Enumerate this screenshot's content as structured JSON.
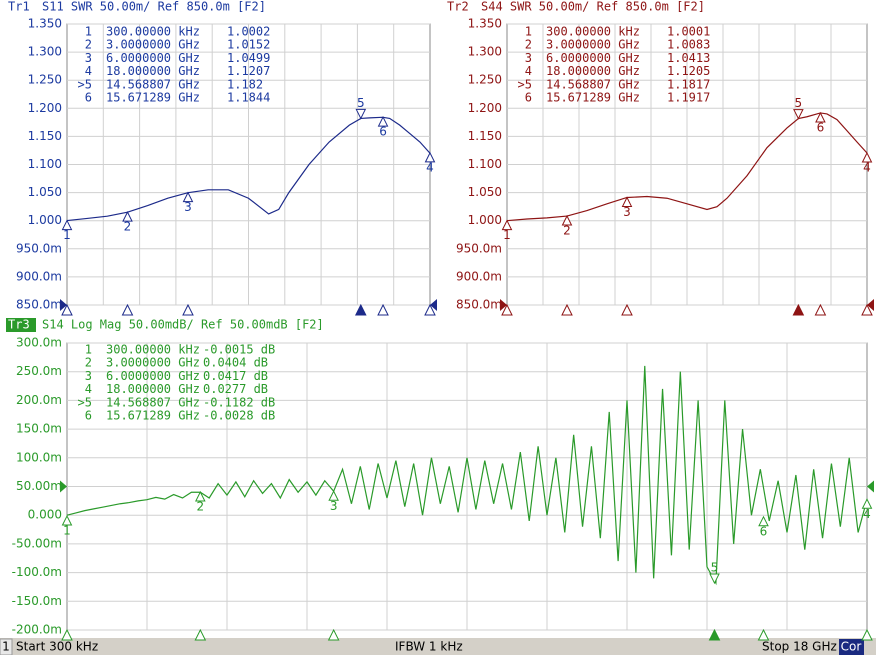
{
  "chart_data": [
    {
      "type": "line",
      "trace": "Tr1",
      "title": "S11  SWR 50.00m/  Ref 850.0m  [F2]",
      "color": "#1c2a8a",
      "text_color": "#1c3aa0",
      "active": false,
      "ref": 0.85,
      "xlim": [
        0.0003,
        18
      ],
      "ylim": [
        0.85,
        1.35
      ],
      "yticks": [
        {
          "value": 0.85,
          "label": "850.0m"
        },
        {
          "value": 0.9,
          "label": "900.0m"
        },
        {
          "value": 0.95,
          "label": "950.0m"
        },
        {
          "value": 1.0,
          "label": "1.000"
        },
        {
          "value": 1.05,
          "label": "1.050"
        },
        {
          "value": 1.1,
          "label": "1.100"
        },
        {
          "value": 1.15,
          "label": "1.150"
        },
        {
          "value": 1.2,
          "label": "1.200"
        },
        {
          "value": 1.25,
          "label": "1.250"
        },
        {
          "value": 1.3,
          "label": "1.300"
        },
        {
          "value": 1.35,
          "label": "1.350"
        }
      ],
      "x": [
        0.0003,
        1,
        2,
        3,
        4,
        5,
        6,
        7,
        8,
        9,
        10,
        10.5,
        11,
        12,
        13,
        14,
        14.57,
        15,
        15.67,
        16,
        16.5,
        17,
        17.5,
        18
      ],
      "values": [
        1.0002,
        1.004,
        1.008,
        1.0152,
        1.027,
        1.04,
        1.0499,
        1.055,
        1.055,
        1.04,
        1.012,
        1.02,
        1.05,
        1.1,
        1.14,
        1.17,
        1.182,
        1.183,
        1.184,
        1.182,
        1.17,
        1.155,
        1.14,
        1.12
      ],
      "markers": [
        {
          "id": "1",
          "stimulus": {
            "value": 0.0003,
            "label": "300.00000 kHz"
          },
          "value": 1.0002
        },
        {
          "id": "2",
          "stimulus": {
            "value": 3,
            "label": "3.0000000 GHz"
          },
          "value": 1.0152
        },
        {
          "id": "3",
          "stimulus": {
            "value": 6,
            "label": "6.0000000 GHz"
          },
          "value": 1.0499
        },
        {
          "id": "4",
          "stimulus": {
            "value": 18,
            "label": "18.000000 GHz"
          },
          "value": 1.1207
        },
        {
          "id": "5",
          "table_id": ">5",
          "stimulus": {
            "value": 14.568807,
            "label": "14.568807 GHz"
          },
          "value": 1.182
        },
        {
          "id": "6",
          "stimulus": {
            "value": 15.671289,
            "label": "15.671289 GHz"
          },
          "value": 1.1844
        }
      ]
    },
    {
      "type": "line",
      "trace": "Tr2",
      "title": "S44  SWR 50.00m/  Ref 850.0m  [F2]",
      "color": "#8e1414",
      "text_color": "#8e1414",
      "active": false,
      "ref": 0.85,
      "xlim": [
        0.0003,
        18
      ],
      "ylim": [
        0.85,
        1.35
      ],
      "yticks": [
        {
          "value": 0.85,
          "label": "850.0m"
        },
        {
          "value": 0.9,
          "label": "900.0m"
        },
        {
          "value": 0.95,
          "label": "950.0m"
        },
        {
          "value": 1.0,
          "label": "1.000"
        },
        {
          "value": 1.05,
          "label": "1.050"
        },
        {
          "value": 1.1,
          "label": "1.100"
        },
        {
          "value": 1.15,
          "label": "1.150"
        },
        {
          "value": 1.2,
          "label": "1.200"
        },
        {
          "value": 1.25,
          "label": "1.250"
        },
        {
          "value": 1.3,
          "label": "1.300"
        },
        {
          "value": 1.35,
          "label": "1.350"
        }
      ],
      "x": [
        0.0003,
        1,
        2,
        3,
        4,
        5,
        6,
        7,
        8,
        9,
        10,
        10.5,
        11,
        12,
        13,
        14,
        14.57,
        15,
        15.67,
        16,
        16.5,
        17,
        17.5,
        18
      ],
      "values": [
        1.0001,
        1.003,
        1.005,
        1.0083,
        1.018,
        1.03,
        1.0413,
        1.043,
        1.04,
        1.03,
        1.02,
        1.025,
        1.04,
        1.08,
        1.13,
        1.165,
        1.1817,
        1.185,
        1.1917,
        1.19,
        1.18,
        1.16,
        1.14,
        1.1205
      ],
      "markers": [
        {
          "id": "1",
          "stimulus": {
            "value": 0.0003,
            "label": "300.00000 kHz"
          },
          "value": 1.0001
        },
        {
          "id": "2",
          "stimulus": {
            "value": 3,
            "label": "3.0000000 GHz"
          },
          "value": 1.0083
        },
        {
          "id": "3",
          "stimulus": {
            "value": 6,
            "label": "6.0000000 GHz"
          },
          "value": 1.0413
        },
        {
          "id": "4",
          "stimulus": {
            "value": 18,
            "label": "18.000000 GHz"
          },
          "value": 1.1205
        },
        {
          "id": "5",
          "table_id": ">5",
          "stimulus": {
            "value": 14.568807,
            "label": "14.568807 GHz"
          },
          "value": 1.1817
        },
        {
          "id": "6",
          "stimulus": {
            "value": 15.671289,
            "label": "15.671289 GHz"
          },
          "value": 1.1917
        }
      ]
    },
    {
      "type": "line",
      "trace": "Tr3",
      "title": "S14  Log Mag 50.00mdB/  Ref 50.00mdB  [F2]",
      "color": "#2a9a2a",
      "text_color": "#2a9a2a",
      "active": true,
      "ref": 0.05,
      "xlim": [
        0.0003,
        18
      ],
      "ylim": [
        -0.2,
        0.3
      ],
      "yticks": [
        {
          "value": -0.2,
          "label": "-200.0m"
        },
        {
          "value": -0.15,
          "label": "-150.0m"
        },
        {
          "value": -0.1,
          "label": "-100.0m"
        },
        {
          "value": -0.05,
          "label": "-50.00m"
        },
        {
          "value": 0,
          "label": "0.000"
        },
        {
          "value": 0.05,
          "label": "50.00m"
        },
        {
          "value": 0.1,
          "label": "100.0m"
        },
        {
          "value": 0.15,
          "label": "150.0m"
        },
        {
          "value": 0.2,
          "label": "200.0m"
        },
        {
          "value": 0.25,
          "label": "250.0m"
        },
        {
          "value": 0.3,
          "label": "300.0m"
        }
      ],
      "x": [
        0.0003,
        0.2,
        0.4,
        0.6,
        0.8,
        1,
        1.2,
        1.4,
        1.6,
        1.8,
        2,
        2.2,
        2.4,
        2.6,
        2.8,
        3,
        3.2,
        3.4,
        3.6,
        3.8,
        4,
        4.2,
        4.4,
        4.6,
        4.8,
        5,
        5.2,
        5.4,
        5.6,
        5.8,
        6,
        6.2,
        6.4,
        6.6,
        6.8,
        7,
        7.2,
        7.4,
        7.6,
        7.8,
        8,
        8.2,
        8.4,
        8.6,
        8.8,
        9,
        9.2,
        9.4,
        9.6,
        9.8,
        10,
        10.2,
        10.4,
        10.6,
        10.8,
        11,
        11.2,
        11.4,
        11.6,
        11.8,
        12,
        12.2,
        12.4,
        12.6,
        12.8,
        13,
        13.2,
        13.4,
        13.6,
        13.8,
        14,
        14.2,
        14.4,
        14.6,
        14.8,
        15,
        15.2,
        15.4,
        15.6,
        15.8,
        16,
        16.2,
        16.4,
        16.6,
        16.8,
        17,
        17.2,
        17.4,
        17.6,
        17.8,
        18
      ],
      "values": [
        0,
        0.004,
        0.008,
        0.011,
        0.014,
        0.017,
        0.02,
        0.022,
        0.025,
        0.027,
        0.031,
        0.028,
        0.036,
        0.03,
        0.04,
        0.04,
        0.03,
        0.055,
        0.035,
        0.058,
        0.032,
        0.06,
        0.038,
        0.055,
        0.03,
        0.062,
        0.04,
        0.058,
        0.035,
        0.06,
        0.0417,
        0.08,
        0.02,
        0.085,
        0.01,
        0.09,
        0.03,
        0.095,
        0.015,
        0.09,
        0.0,
        0.1,
        0.02,
        0.085,
        0.005,
        0.1,
        0.01,
        0.095,
        0.02,
        0.09,
        0.01,
        0.11,
        -0.01,
        0.12,
        0.0,
        0.1,
        -0.03,
        0.14,
        -0.02,
        0.12,
        -0.04,
        0.18,
        -0.08,
        0.2,
        -0.1,
        0.26,
        -0.11,
        0.22,
        -0.07,
        0.25,
        -0.06,
        0.2,
        -0.09,
        -0.1182,
        0.2,
        -0.05,
        0.15,
        0.0,
        0.08,
        -0.01,
        0.06,
        -0.03,
        0.07,
        -0.06,
        0.08,
        -0.04,
        0.09,
        -0.02,
        0.1,
        -0.03,
        0.0277
      ],
      "markers": [
        {
          "id": "1",
          "stimulus": {
            "value": 0.0003,
            "label": "300.00000 kHz"
          },
          "value": -0.0015,
          "value_label": "-0.0015 dB"
        },
        {
          "id": "2",
          "stimulus": {
            "value": 3,
            "label": "3.0000000 GHz"
          },
          "value": 0.0404,
          "value_label": "0.0404 dB"
        },
        {
          "id": "3",
          "stimulus": {
            "value": 6,
            "label": "6.0000000 GHz"
          },
          "value": 0.0417,
          "value_label": "0.0417 dB"
        },
        {
          "id": "4",
          "stimulus": {
            "value": 18,
            "label": "18.000000 GHz"
          },
          "value": 0.0277,
          "value_label": "0.0277 dB"
        },
        {
          "id": "5",
          "table_id": ">5",
          "stimulus": {
            "value": 14.568807,
            "label": "14.568807 GHz"
          },
          "value": -0.1182,
          "value_label": "-0.1182 dB"
        },
        {
          "id": "6",
          "stimulus": {
            "value": 15.671289,
            "label": "15.671289 GHz"
          },
          "value": -0.0028,
          "value_label": "-0.0028 dB"
        }
      ]
    }
  ],
  "status_bar": {
    "channel": "1",
    "start": "Start 300 kHz",
    "ifbw": "IFBW 1 kHz",
    "stop": "Stop 18 GHz",
    "correction": "Cor"
  }
}
